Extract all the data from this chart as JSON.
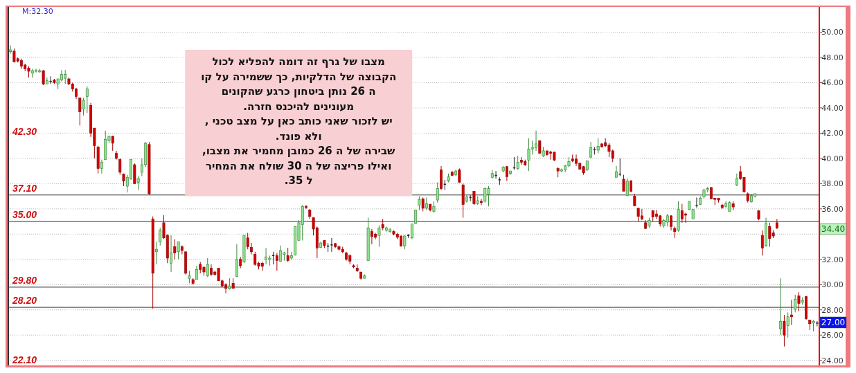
{
  "chart_data": {
    "type": "candlestick",
    "categories": [
      null,
      null,
      null,
      null,
      null,
      null,
      null,
      null,
      null,
      null,
      null,
      null,
      null,
      null,
      null,
      null,
      null,
      null,
      null,
      null,
      null,
      null,
      null,
      null,
      null,
      null,
      null,
      null,
      null,
      null,
      null,
      null,
      null,
      null,
      null,
      null,
      null,
      null,
      null,
      null,
      null,
      null,
      null,
      null,
      null,
      null,
      null,
      null,
      null,
      null,
      null,
      null,
      null,
      null,
      null,
      null,
      null,
      null,
      null,
      null,
      null,
      null,
      null,
      null,
      null,
      null,
      null,
      null,
      null,
      null,
      null,
      null,
      null,
      null,
      null,
      null,
      null,
      null,
      null,
      null,
      null,
      null,
      null,
      null,
      null,
      null,
      null,
      null,
      null,
      null,
      null,
      null,
      null,
      null,
      null,
      null,
      null,
      null,
      null,
      null,
      null,
      null,
      null,
      null,
      null,
      null,
      null,
      null,
      null,
      null,
      null,
      null,
      null,
      null,
      null,
      null,
      null,
      null,
      null,
      null,
      null,
      null,
      null,
      null,
      null,
      null,
      null,
      null,
      null,
      null,
      null,
      null,
      null,
      null,
      null,
      null,
      null,
      null,
      null,
      null,
      null,
      null,
      null,
      null,
      null,
      null,
      null,
      null,
      null,
      null,
      null,
      null,
      null,
      null,
      null,
      null,
      null,
      null,
      null,
      null,
      null,
      null,
      null,
      null,
      null,
      null,
      null,
      null,
      null,
      null,
      null,
      null,
      null,
      null,
      null,
      null,
      null,
      null,
      null,
      null,
      null,
      null,
      null,
      null,
      null,
      null,
      null,
      null,
      null,
      null,
      null,
      null,
      null,
      null,
      null,
      null,
      null,
      null,
      null,
      null,
      null,
      null,
      null,
      null,
      null,
      null,
      null,
      null,
      null,
      null,
      null,
      null,
      null,
      null,
      null,
      null,
      null,
      null,
      null,
      null,
      null,
      null
    ],
    "ohlc": [
      [
        48.45,
        48.95,
        48.3,
        48.6
      ],
      [
        48.5,
        48.7,
        47.6,
        47.65
      ],
      [
        47.9,
        48.0,
        47.6,
        47.7
      ],
      [
        47.75,
        47.9,
        47.1,
        47.3
      ],
      [
        47.4,
        47.5,
        46.9,
        47.1
      ],
      [
        47.15,
        47.3,
        46.4,
        46.9
      ],
      [
        46.75,
        47.1,
        46.4,
        46.95
      ],
      [
        46.9,
        47.1,
        46.8,
        47.0
      ],
      [
        46.85,
        47.1,
        46.8,
        46.95
      ],
      [
        46.95,
        47.0,
        45.8,
        45.9
      ],
      [
        45.9,
        46.4,
        45.9,
        46.15
      ],
      [
        46.1,
        46.5,
        45.9,
        46.1
      ],
      [
        46.2,
        46.3,
        45.9,
        46.0
      ],
      [
        45.9,
        46.3,
        45.5,
        46.3
      ],
      [
        46.2,
        47.0,
        46.1,
        46.65
      ],
      [
        46.35,
        47.0,
        45.9,
        46.65
      ],
      [
        46.3,
        46.4,
        45.8,
        45.9
      ],
      [
        45.9,
        46.0,
        45.3,
        45.5
      ],
      [
        45.5,
        45.6,
        44.7,
        44.9
      ],
      [
        44.8,
        44.8,
        42.6,
        43.7
      ],
      [
        43.9,
        44.8,
        43.4,
        44.6
      ],
      [
        44.9,
        45.7,
        43.6,
        45.5
      ],
      [
        44.2,
        44.4,
        41.7,
        42.0
      ],
      [
        42.4,
        42.4,
        40.0,
        41.0
      ],
      [
        40.9,
        41.0,
        38.8,
        39.2
      ],
      [
        39.2,
        39.9,
        38.8,
        39.7
      ],
      [
        39.9,
        42.2,
        39.9,
        41.5
      ],
      [
        41.4,
        41.8,
        41.2,
        41.75
      ],
      [
        41.75,
        41.8,
        40.6,
        41.2
      ],
      [
        40.4,
        40.6,
        39.9,
        40.0
      ],
      [
        39.9,
        40.0,
        38.7,
        38.9
      ],
      [
        38.75,
        38.8,
        37.8,
        38.2
      ],
      [
        37.8,
        38.7,
        37.3,
        38.5
      ],
      [
        38.4,
        39.9,
        38.3,
        39.9
      ],
      [
        39.5,
        39.6,
        38.0,
        38.0
      ],
      [
        38.1,
        38.6,
        37.5,
        38.4
      ],
      [
        38.9,
        40.0,
        38.6,
        39.5
      ],
      [
        39.5,
        41.3,
        39.3,
        41.2
      ],
      [
        41.1,
        41.3,
        37.1,
        37.2
      ],
      [
        35.2,
        35.4,
        28.1,
        30.9
      ],
      [
        32.6,
        33.4,
        31.6,
        32.8
      ],
      [
        33.4,
        34.5,
        33.1,
        34.3
      ],
      [
        34.9,
        35.5,
        33.6,
        33.7
      ],
      [
        33.9,
        34.0,
        31.7,
        32.1
      ],
      [
        31.7,
        33.9,
        31.0,
        32.5
      ],
      [
        33.0,
        33.6,
        32.0,
        32.5
      ],
      [
        32.6,
        33.4,
        32.0,
        33.4
      ],
      [
        33.0,
        33.1,
        32.4,
        32.7
      ],
      [
        32.6,
        32.6,
        30.8,
        30.9
      ],
      [
        30.5,
        31.1,
        30.1,
        30.7
      ],
      [
        30.4,
        30.5,
        30.0,
        30.1
      ],
      [
        30.4,
        31.5,
        30.4,
        31.2
      ],
      [
        31.6,
        31.8,
        30.9,
        31.2
      ],
      [
        31.35,
        31.5,
        30.7,
        31.0
      ],
      [
        30.7,
        32.1,
        30.6,
        31.6
      ],
      [
        31.3,
        31.6,
        30.7,
        30.8
      ],
      [
        31.0,
        31.1,
        30.7,
        30.8
      ],
      [
        31.3,
        31.3,
        30.3,
        30.3
      ],
      [
        30.3,
        30.4,
        29.8,
        29.9
      ],
      [
        30.0,
        30.1,
        29.3,
        29.7
      ],
      [
        29.65,
        30.5,
        29.6,
        29.9
      ],
      [
        30.1,
        30.5,
        29.7,
        29.7
      ],
      [
        30.65,
        33.2,
        30.6,
        32.0
      ],
      [
        32.0,
        32.2,
        31.3,
        31.5
      ],
      [
        31.8,
        33.9,
        31.7,
        33.9
      ],
      [
        33.7,
        34.1,
        32.8,
        33.0
      ],
      [
        32.95,
        33.3,
        32.4,
        32.6
      ],
      [
        32.4,
        32.6,
        31.5,
        31.6
      ],
      [
        31.7,
        31.8,
        31.2,
        31.45
      ],
      [
        31.7,
        31.8,
        31.1,
        31.45
      ],
      [
        32.0,
        32.9,
        31.6,
        32.2
      ],
      [
        32.0,
        32.3,
        31.5,
        32.1
      ],
      [
        32.3,
        32.6,
        31.6,
        32.3
      ],
      [
        32.3,
        32.5,
        31.1,
        31.9
      ],
      [
        31.85,
        33.1,
        31.8,
        32.7
      ],
      [
        32.4,
        32.6,
        31.9,
        32.5
      ],
      [
        32.3,
        32.9,
        31.8,
        31.9
      ],
      [
        32.1,
        32.6,
        32.0,
        32.3
      ],
      [
        32.35,
        34.6,
        32.3,
        34.6
      ],
      [
        33.5,
        35.1,
        33.5,
        34.9
      ],
      [
        34.75,
        36.3,
        33.5,
        36.2
      ],
      [
        36.2,
        36.3,
        36.0,
        36.1
      ],
      [
        35.9,
        36.0,
        35.2,
        35.4
      ],
      [
        35.3,
        35.3,
        33.9,
        34.4
      ],
      [
        34.5,
        34.6,
        32.1,
        32.9
      ],
      [
        32.95,
        33.4,
        32.9,
        33.3
      ],
      [
        33.5,
        33.5,
        32.9,
        33.1
      ],
      [
        33.05,
        33.3,
        32.6,
        33.05
      ],
      [
        33.15,
        33.7,
        32.6,
        33.15
      ],
      [
        33.25,
        33.3,
        32.9,
        33.0
      ],
      [
        33.0,
        33.1,
        32.7,
        32.8
      ],
      [
        32.8,
        33.0,
        32.5,
        32.6
      ],
      [
        32.5,
        32.6,
        31.9,
        32.0
      ],
      [
        32.3,
        32.4,
        31.6,
        31.85
      ],
      [
        31.5,
        31.6,
        31.3,
        31.4
      ],
      [
        31.3,
        31.6,
        31.0,
        31.1
      ],
      [
        31.0,
        31.0,
        30.4,
        30.5
      ],
      [
        30.5,
        30.8,
        30.5,
        30.7
      ],
      [
        31.9,
        35.3,
        31.9,
        34.5
      ],
      [
        34.2,
        34.4,
        33.2,
        33.8
      ],
      [
        34.0,
        34.1,
        33.6,
        33.75
      ],
      [
        33.9,
        34.7,
        33.0,
        34.5
      ],
      [
        34.75,
        35.2,
        34.3,
        34.5
      ],
      [
        34.3,
        34.6,
        34.2,
        34.5
      ],
      [
        34.2,
        34.5,
        34.1,
        34.35
      ],
      [
        34.2,
        34.3,
        33.9,
        34.0
      ],
      [
        34.0,
        34.1,
        33.6,
        33.75
      ],
      [
        33.85,
        33.9,
        33.0,
        33.05
      ],
      [
        33.05,
        33.9,
        32.8,
        33.85
      ],
      [
        33.9,
        34.0,
        33.7,
        33.9
      ],
      [
        33.7,
        34.8,
        33.6,
        34.8
      ],
      [
        34.85,
        35.9,
        34.8,
        35.9
      ],
      [
        36.3,
        37.0,
        35.9,
        36.75
      ],
      [
        36.8,
        36.9,
        35.8,
        36.05
      ],
      [
        36.05,
        36.9,
        35.9,
        36.4
      ],
      [
        36.35,
        36.4,
        35.8,
        35.9
      ],
      [
        35.8,
        36.6,
        35.7,
        36.2
      ],
      [
        36.7,
        38.1,
        36.5,
        37.6
      ],
      [
        39.1,
        39.4,
        37.5,
        37.6
      ],
      [
        37.95,
        38.3,
        37.5,
        37.95
      ],
      [
        38.2,
        38.8,
        38.1,
        38.55
      ],
      [
        38.9,
        39.0,
        38.6,
        38.65
      ],
      [
        38.7,
        39.1,
        38.6,
        39.0
      ],
      [
        39.1,
        39.2,
        38.1,
        38.1
      ],
      [
        37.9,
        38.0,
        35.3,
        36.35
      ],
      [
        36.6,
        37.1,
        36.5,
        36.95
      ],
      [
        36.9,
        37.1,
        36.6,
        36.9
      ],
      [
        37.4,
        37.4,
        36.3,
        36.4
      ],
      [
        36.4,
        37.0,
        36.3,
        36.65
      ],
      [
        36.6,
        36.8,
        36.3,
        36.5
      ],
      [
        36.6,
        37.7,
        36.5,
        37.6
      ],
      [
        37.15,
        37.8,
        36.2,
        37.6
      ],
      [
        38.5,
        39.1,
        38.4,
        38.8
      ],
      [
        38.65,
        39.0,
        38.4,
        38.65
      ],
      [
        38.3,
        38.5,
        37.9,
        38.3
      ],
      [
        39.0,
        39.4,
        38.9,
        39.3
      ],
      [
        39.35,
        39.4,
        38.2,
        38.55
      ],
      [
        38.8,
        39.0,
        38.7,
        39.0
      ],
      [
        39.25,
        40.1,
        39.1,
        39.25
      ],
      [
        39.2,
        40.2,
        39.1,
        39.7
      ],
      [
        39.85,
        40.1,
        39.5,
        39.7
      ],
      [
        39.75,
        39.9,
        39.4,
        39.5
      ],
      [
        39.85,
        41.6,
        39.0,
        40.75
      ],
      [
        40.75,
        41.4,
        40.3,
        40.85
      ],
      [
        40.85,
        42.2,
        40.6,
        41.15
      ],
      [
        41.4,
        41.4,
        40.4,
        40.4
      ],
      [
        40.2,
        40.9,
        40.1,
        40.6
      ],
      [
        40.6,
        40.6,
        40.2,
        40.3
      ],
      [
        40.5,
        40.6,
        39.9,
        40.4
      ],
      [
        40.5,
        40.5,
        39.8,
        39.85
      ],
      [
        39.2,
        39.3,
        38.5,
        39.0
      ],
      [
        39.0,
        39.2,
        38.9,
        39.1
      ],
      [
        39.1,
        39.5,
        38.9,
        39.4
      ],
      [
        39.4,
        40.1,
        39.3,
        39.75
      ],
      [
        39.95,
        40.3,
        39.7,
        39.8
      ],
      [
        39.95,
        40.3,
        39.4,
        39.6
      ],
      [
        39.6,
        39.7,
        39.1,
        39.15
      ],
      [
        39.35,
        39.4,
        38.7,
        38.85
      ],
      [
        39.1,
        39.8,
        39.0,
        39.8
      ],
      [
        40.1,
        41.3,
        40.0,
        40.85
      ],
      [
        40.7,
        40.9,
        40.3,
        40.7
      ],
      [
        40.65,
        41.6,
        40.4,
        40.95
      ],
      [
        41.15,
        41.2,
        40.9,
        40.9
      ],
      [
        41.25,
        41.6,
        40.9,
        41.0
      ],
      [
        41.05,
        41.2,
        40.1,
        40.55
      ],
      [
        40.6,
        40.7,
        39.7,
        40.0
      ],
      [
        38.5,
        39.4,
        38.5,
        38.95
      ],
      [
        38.75,
        40.0,
        38.6,
        38.75
      ],
      [
        38.35,
        38.7,
        37.4,
        37.4
      ],
      [
        37.05,
        38.4,
        37.0,
        38.2
      ],
      [
        38.2,
        38.3,
        37.3,
        37.4
      ],
      [
        37.0,
        37.2,
        36.2,
        36.25
      ],
      [
        36.05,
        36.1,
        35.0,
        35.4
      ],
      [
        35.45,
        36.0,
        35.1,
        35.2
      ],
      [
        34.9,
        35.1,
        34.4,
        34.45
      ],
      [
        34.65,
        35.3,
        34.5,
        35.1
      ],
      [
        35.85,
        35.9,
        35.0,
        35.35
      ],
      [
        35.6,
        35.9,
        35.2,
        35.4
      ],
      [
        35.45,
        35.5,
        34.6,
        34.8
      ],
      [
        34.65,
        35.2,
        34.5,
        35.1
      ],
      [
        34.95,
        35.6,
        34.6,
        35.45
      ],
      [
        35.45,
        35.5,
        34.3,
        34.6
      ],
      [
        34.45,
        34.6,
        33.7,
        34.2
      ],
      [
        34.3,
        36.6,
        34.2,
        35.95
      ],
      [
        35.85,
        36.4,
        34.9,
        35.2
      ],
      [
        35.6,
        35.7,
        34.9,
        35.5
      ],
      [
        35.95,
        36.6,
        35.9,
        36.6
      ],
      [
        35.2,
        36.0,
        35.2,
        35.95
      ],
      [
        36.25,
        36.9,
        36.1,
        36.25
      ],
      [
        36.35,
        37.0,
        36.3,
        36.85
      ],
      [
        36.95,
        37.6,
        36.8,
        37.5
      ],
      [
        37.5,
        37.75,
        37.3,
        37.6
      ],
      [
        37.7,
        37.7,
        36.8,
        36.8
      ],
      [
        36.85,
        36.85,
        36.3,
        36.75
      ],
      [
        36.85,
        36.85,
        36.5,
        36.7
      ],
      [
        36.3,
        36.4,
        36.0,
        36.1
      ],
      [
        36.2,
        36.6,
        36.1,
        36.4
      ],
      [
        35.8,
        36.6,
        35.8,
        36.5
      ],
      [
        36.4,
        36.6,
        35.9,
        36.15
      ],
      [
        37.9,
        38.8,
        37.8,
        38.4
      ],
      [
        38.95,
        39.4,
        38.3,
        38.4
      ],
      [
        38.5,
        38.5,
        37.3,
        37.35
      ],
      [
        37.2,
        37.3,
        36.5,
        36.65
      ],
      [
        36.55,
        37.2,
        36.5,
        37.05
      ],
      [
        37.0,
        37.2,
        36.9,
        37.2
      ],
      [
        35.85,
        35.9,
        35.1,
        35.2
      ],
      [
        33.9,
        34.3,
        32.3,
        32.9
      ],
      [
        33.1,
        35.3,
        33.0,
        34.85
      ],
      [
        34.6,
        34.9,
        33.0,
        33.65
      ],
      [
        34.1,
        34.3,
        33.7,
        33.85
      ],
      [
        34.9,
        35.2,
        34.4,
        34.5
      ],
      [
        26.5,
        30.5,
        26.0,
        27.1
      ],
      [
        27.1,
        27.6,
        25.1,
        26.0
      ],
      [
        26.75,
        27.8,
        25.8,
        27.45
      ],
      [
        27.6,
        28.8,
        26.8,
        27.45
      ],
      [
        28.05,
        29.2,
        27.8,
        28.85
      ],
      [
        29.1,
        29.4,
        27.9,
        28.5
      ],
      [
        28.6,
        29.0,
        28.4,
        28.75
      ],
      [
        29.05,
        29.1,
        27.2,
        27.3
      ],
      [
        27.2,
        27.2,
        26.4,
        26.9
      ],
      [
        26.95,
        27.2,
        26.3,
        27.1
      ],
      [
        26.95,
        27.1,
        26.7,
        26.95
      ]
    ],
    "ylim": [
      23.6,
      52.0
    ],
    "yticks": [
      {
        "value": 24,
        "label": "24.00"
      },
      {
        "value": 26,
        "label": "26.00"
      },
      {
        "value": 28,
        "label": "28.00"
      },
      {
        "value": 30,
        "label": "30.00"
      },
      {
        "value": 32,
        "label": "32.00"
      },
      {
        "value": 34,
        "label": null
      },
      {
        "value": 36,
        "label": "36.00"
      },
      {
        "value": 38,
        "label": "38.00"
      },
      {
        "value": 40,
        "label": "40.00"
      },
      {
        "value": 42,
        "label": "42.00"
      },
      {
        "value": 44,
        "label": "44.00"
      },
      {
        "value": 46,
        "label": "46.00"
      },
      {
        "value": 48,
        "label": "48.00"
      },
      {
        "value": 50,
        "label": "50.00"
      }
    ],
    "grid": "y",
    "ref_lines": [
      {
        "axis": "y",
        "value": 37.1,
        "label": "37.10"
      },
      {
        "axis": "y",
        "value": 35.0,
        "label": "35.00"
      },
      {
        "axis": "y",
        "value": 29.8,
        "label": "29.80"
      },
      {
        "axis": "y",
        "value": 28.2,
        "label": "28.20"
      }
    ],
    "annotations": [
      "מצבו של גרף זה דומה להפליא לכול\nהקבוצה של הדלקיות, כך ששמירה על קו\nה 26 נותן ביטחון כרגע שהקונים\nמעונינים להיכנס חזרה.\nיש לזכור שאני כותב כאן על מצב טכני ,\nולא פונד.\nשבירה של ה 26 כמובן מחמיר את מצבו,\nואילו פריצה של ה 30 שולח את המחיר\nל 35.",
      "M:32.30",
      "42.30",
      "22.10",
      {
        "text": "34.40",
        "y": 34.4
      },
      {
        "text": "27.00",
        "y": 27.0
      }
    ]
  }
}
